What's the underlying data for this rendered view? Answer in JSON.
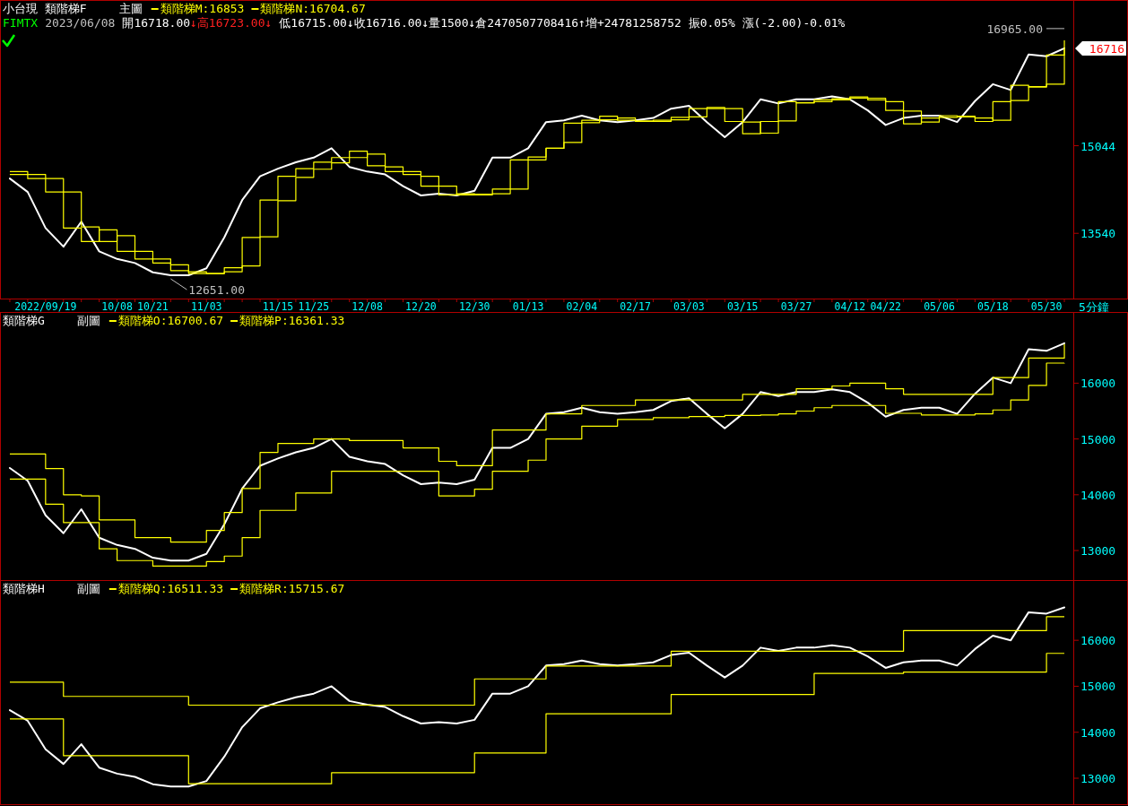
{
  "chart_data": [
    {
      "type": "line",
      "title": "小台現 類階梯F",
      "subtitle": "主圖",
      "xlabel": "5分鐘",
      "legend": "top left",
      "categories": [
        null,
        null,
        "2022/09/19",
        null,
        null,
        null,
        "10/08",
        null,
        "10/21",
        null,
        null,
        "11/03",
        null,
        null,
        null,
        "11/15",
        null,
        "11/25",
        null,
        null,
        "12/08",
        null,
        null,
        "12/20",
        null,
        null,
        "12/30",
        null,
        null,
        "01/13",
        null,
        null,
        "02/04",
        null,
        null,
        "02/17",
        null,
        null,
        "03/03",
        null,
        null,
        "03/15",
        null,
        null,
        "03/27",
        null,
        null,
        "04/12",
        null,
        "04/22",
        null,
        null,
        "05/06",
        null,
        null,
        "05/18",
        null,
        null,
        "05/30",
        null
      ],
      "ylim": [
        12420,
        17530
      ],
      "yticks": [
        15044,
        13540
      ],
      "annotations": [
        "FIMTX",
        "2023/06/08",
        "開16718.00",
        "↓高16723.00↓",
        "低16715.00↓收16716.00↓量1500↓倉2470507708416↑增+24781258752 振0.05% 漲(-2.00)-0.01%",
        "16965.00",
        "12651.00",
        "16716"
      ],
      "series": [
        {
          "type": "line",
          "color": "#ffffff",
          "values": [
            14480,
            14250,
            13630,
            13310,
            13740,
            13230,
            13100,
            13030,
            12870,
            12820,
            12820,
            12940,
            13470,
            14110,
            14520,
            14650,
            14760,
            14840,
            15000,
            14680,
            14600,
            14550,
            14350,
            14190,
            14220,
            14190,
            14270,
            14840,
            14840,
            15000,
            15450,
            15480,
            15560,
            15480,
            15450,
            15480,
            15520,
            15680,
            15730,
            15450,
            15190,
            15450,
            15840,
            15770,
            15840,
            15840,
            15890,
            15840,
            15650,
            15400,
            15520,
            15560,
            15560,
            15450,
            15810,
            16100,
            16000,
            16610,
            16580,
            16716
          ]
        },
        {
          "type": "step",
          "name": "類階梯M:16853",
          "color": "#ffff00",
          "values": [
            14550,
            14480,
            14250,
            13630,
            13400,
            13600,
            13230,
            13100,
            13030,
            12900,
            12850,
            12850,
            12950,
            13470,
            14110,
            14520,
            14650,
            14760,
            14840,
            14950,
            14700,
            14600,
            14550,
            14350,
            14200,
            14220,
            14200,
            14300,
            14800,
            14850,
            15000,
            15430,
            15480,
            15550,
            15480,
            15460,
            15480,
            15530,
            15680,
            15700,
            15460,
            15250,
            15460,
            15800,
            15780,
            15830,
            15850,
            15880,
            15830,
            15650,
            15420,
            15520,
            15560,
            15550,
            15460,
            15800,
            16080,
            16050,
            16600,
            16853
          ]
        },
        {
          "type": "step",
          "name": "類階梯N:16704.67",
          "color": "#ffff00",
          "values": [
            14600,
            14550,
            14480,
            14250,
            13650,
            13400,
            13500,
            13230,
            13100,
            13000,
            12880,
            12850,
            12880,
            12980,
            13480,
            14100,
            14500,
            14640,
            14750,
            14840,
            14900,
            14680,
            14600,
            14520,
            14350,
            14200,
            14210,
            14220,
            14300,
            14800,
            15000,
            15100,
            15440,
            15490,
            15520,
            15470,
            15460,
            15490,
            15540,
            15680,
            15680,
            15450,
            15260,
            15470,
            15780,
            15800,
            15830,
            15860,
            15860,
            15800,
            15640,
            15450,
            15530,
            15540,
            15520,
            15480,
            15820,
            16060,
            16100,
            16705
          ]
        }
      ]
    },
    {
      "type": "line",
      "title": "類階梯G",
      "subtitle": "副圖",
      "legend": "top left",
      "tick_labels": "y",
      "categories": [
        null,
        null,
        null,
        null,
        null,
        null,
        null,
        null,
        null,
        null,
        null,
        null,
        null,
        null,
        null,
        null,
        null,
        null,
        null,
        null,
        null,
        null,
        null,
        null,
        null,
        null,
        null,
        null,
        null,
        null,
        null,
        null,
        null,
        null,
        null,
        null,
        null,
        null,
        null,
        null,
        null,
        null,
        null,
        null,
        null,
        null,
        null,
        null,
        null,
        null,
        null,
        null,
        null,
        null,
        null,
        null,
        null,
        null,
        null,
        null
      ],
      "ylim": [
        12470,
        17260
      ],
      "yticks": [
        16000,
        15000,
        14000,
        13000
      ],
      "series": [
        {
          "type": "line",
          "color": "#ffffff",
          "values": [
            14480,
            14250,
            13630,
            13310,
            13740,
            13230,
            13100,
            13030,
            12870,
            12820,
            12820,
            12940,
            13470,
            14110,
            14520,
            14650,
            14760,
            14840,
            15000,
            14680,
            14600,
            14550,
            14350,
            14190,
            14220,
            14190,
            14270,
            14840,
            14840,
            15000,
            15450,
            15480,
            15560,
            15480,
            15450,
            15480,
            15520,
            15680,
            15730,
            15450,
            15190,
            15450,
            15840,
            15770,
            15840,
            15840,
            15890,
            15840,
            15650,
            15400,
            15520,
            15560,
            15560,
            15450,
            15810,
            16100,
            16000,
            16610,
            16580,
            16716
          ]
        },
        {
          "type": "step",
          "name": "類階梯O:16700.67",
          "color": "#ffff00",
          "values": [
            14730,
            14730,
            14470,
            14000,
            13980,
            13550,
            13550,
            13230,
            13230,
            13150,
            13150,
            13360,
            13680,
            14110,
            14760,
            14920,
            14920,
            15000,
            15000,
            14970,
            14970,
            14970,
            14840,
            14840,
            14600,
            14520,
            14520,
            15160,
            15160,
            15160,
            15450,
            15450,
            15600,
            15600,
            15600,
            15700,
            15700,
            15700,
            15700,
            15700,
            15700,
            15800,
            15800,
            15800,
            15900,
            15900,
            15950,
            16000,
            16000,
            15900,
            15800,
            15800,
            15800,
            15800,
            15800,
            16100,
            16100,
            16450,
            16450,
            16701
          ]
        },
        {
          "type": "step",
          "name": "類階梯P:16361.33",
          "color": "#ffff00",
          "values": [
            14280,
            14280,
            13830,
            13500,
            13500,
            13030,
            12820,
            12820,
            12720,
            12720,
            12720,
            12800,
            12900,
            13230,
            13720,
            13720,
            14030,
            14030,
            14420,
            14420,
            14420,
            14420,
            14420,
            14420,
            13980,
            13980,
            14100,
            14420,
            14420,
            14620,
            15000,
            15000,
            15230,
            15230,
            15350,
            15350,
            15380,
            15380,
            15400,
            15400,
            15420,
            15420,
            15430,
            15450,
            15500,
            15560,
            15600,
            15600,
            15600,
            15460,
            15460,
            15430,
            15430,
            15430,
            15450,
            15520,
            15700,
            15960,
            16360,
            16361
          ]
        }
      ]
    },
    {
      "type": "line",
      "title": "類階梯H",
      "subtitle": "副圖",
      "legend": "top left",
      "tick_labels": "y",
      "categories": [
        null,
        null,
        null,
        null,
        null,
        null,
        null,
        null,
        null,
        null,
        null,
        null,
        null,
        null,
        null,
        null,
        null,
        null,
        null,
        null,
        null,
        null,
        null,
        null,
        null,
        null,
        null,
        null,
        null,
        null,
        null,
        null,
        null,
        null,
        null,
        null,
        null,
        null,
        null,
        null,
        null,
        null,
        null,
        null,
        null,
        null,
        null,
        null,
        null,
        null,
        null,
        null,
        null,
        null,
        null,
        null,
        null,
        null,
        null,
        null
      ],
      "ylim": [
        12435,
        17290
      ],
      "yticks": [
        16000,
        15000,
        14000,
        13000
      ],
      "series": [
        {
          "type": "line",
          "color": "#ffffff",
          "values": [
            14480,
            14250,
            13630,
            13310,
            13740,
            13230,
            13100,
            13030,
            12870,
            12820,
            12820,
            12940,
            13470,
            14110,
            14520,
            14650,
            14760,
            14840,
            15000,
            14680,
            14600,
            14550,
            14350,
            14190,
            14220,
            14190,
            14270,
            14840,
            14840,
            15000,
            15450,
            15480,
            15560,
            15480,
            15450,
            15480,
            15520,
            15680,
            15730,
            15450,
            15190,
            15450,
            15840,
            15770,
            15840,
            15840,
            15890,
            15840,
            15650,
            15400,
            15520,
            15560,
            15560,
            15450,
            15810,
            16100,
            16000,
            16610,
            16580,
            16716
          ]
        },
        {
          "type": "step",
          "name": "類階梯Q:16511.33",
          "color": "#ffff00",
          "values": [
            15090,
            15090,
            15090,
            14780,
            14780,
            14780,
            14780,
            14780,
            14780,
            14780,
            14590,
            14590,
            14590,
            14590,
            14590,
            14590,
            14590,
            14590,
            14590,
            14590,
            14590,
            14590,
            14590,
            14590,
            14590,
            14590,
            15160,
            15160,
            15160,
            15160,
            15440,
            15440,
            15440,
            15440,
            15440,
            15440,
            15440,
            15760,
            15760,
            15760,
            15760,
            15760,
            15760,
            15760,
            15760,
            15760,
            15760,
            15760,
            15760,
            15760,
            16210,
            16210,
            16210,
            16210,
            16210,
            16210,
            16210,
            16210,
            16511,
            16511
          ]
        },
        {
          "type": "step",
          "name": "類階梯R:15715.67",
          "color": "#ffff00",
          "values": [
            14290,
            14290,
            14290,
            13490,
            13490,
            13490,
            13490,
            13490,
            13490,
            13490,
            12880,
            12880,
            12880,
            12880,
            12880,
            12880,
            12880,
            12880,
            13120,
            13120,
            13120,
            13120,
            13120,
            13120,
            13120,
            13120,
            13550,
            13550,
            13550,
            13550,
            14400,
            14400,
            14400,
            14400,
            14400,
            14400,
            14400,
            14820,
            14820,
            14820,
            14820,
            14820,
            14820,
            14820,
            14820,
            15280,
            15280,
            15280,
            15280,
            15280,
            15310,
            15310,
            15310,
            15310,
            15310,
            15310,
            15310,
            15310,
            15716,
            15716
          ]
        }
      ]
    }
  ]
}
